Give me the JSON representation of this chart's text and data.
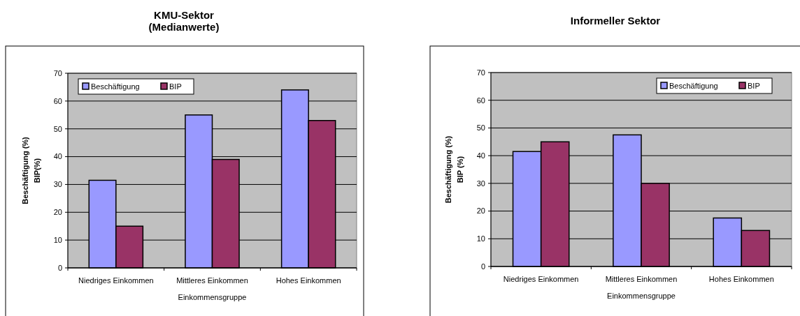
{
  "chart_data": [
    {
      "type": "bar",
      "title": "KMU-Sektor\n(Medianwerte)",
      "xlabel": "Einkommensgruppe",
      "ylabel": "Beschäftigung (%)\nBIP(%)",
      "categories": [
        "Niedriges Einkommen",
        "Mittleres Einkommen",
        "Hohes Einkommen"
      ],
      "series": [
        {
          "name": "Beschäftigung",
          "color": "#9999ff",
          "values": [
            31.5,
            55,
            64
          ]
        },
        {
          "name": "BIP",
          "color": "#993366",
          "values": [
            15,
            39,
            53
          ]
        }
      ],
      "ylim": [
        0,
        70
      ],
      "yticks": [
        0,
        10,
        20,
        30,
        40,
        50,
        60,
        70
      ],
      "grid": "y",
      "legend": "top left"
    },
    {
      "type": "bar",
      "title": "Informeller Sektor",
      "xlabel": "Einkommensgruppe",
      "ylabel": "Beschäftigung (%)\nBIP (%)",
      "categories": [
        "Niedriges Einkommen",
        "Mittleres Einkommen",
        "Hohes Einkommen"
      ],
      "series": [
        {
          "name": "Beschäftigung",
          "color": "#9999ff",
          "values": [
            41.5,
            47.5,
            17.5
          ]
        },
        {
          "name": "BIP",
          "color": "#993366",
          "values": [
            45,
            30,
            13
          ]
        }
      ],
      "ylim": [
        0,
        70
      ],
      "yticks": [
        0,
        10,
        20,
        30,
        40,
        50,
        60,
        70
      ],
      "grid": "y",
      "legend": "top right"
    }
  ]
}
